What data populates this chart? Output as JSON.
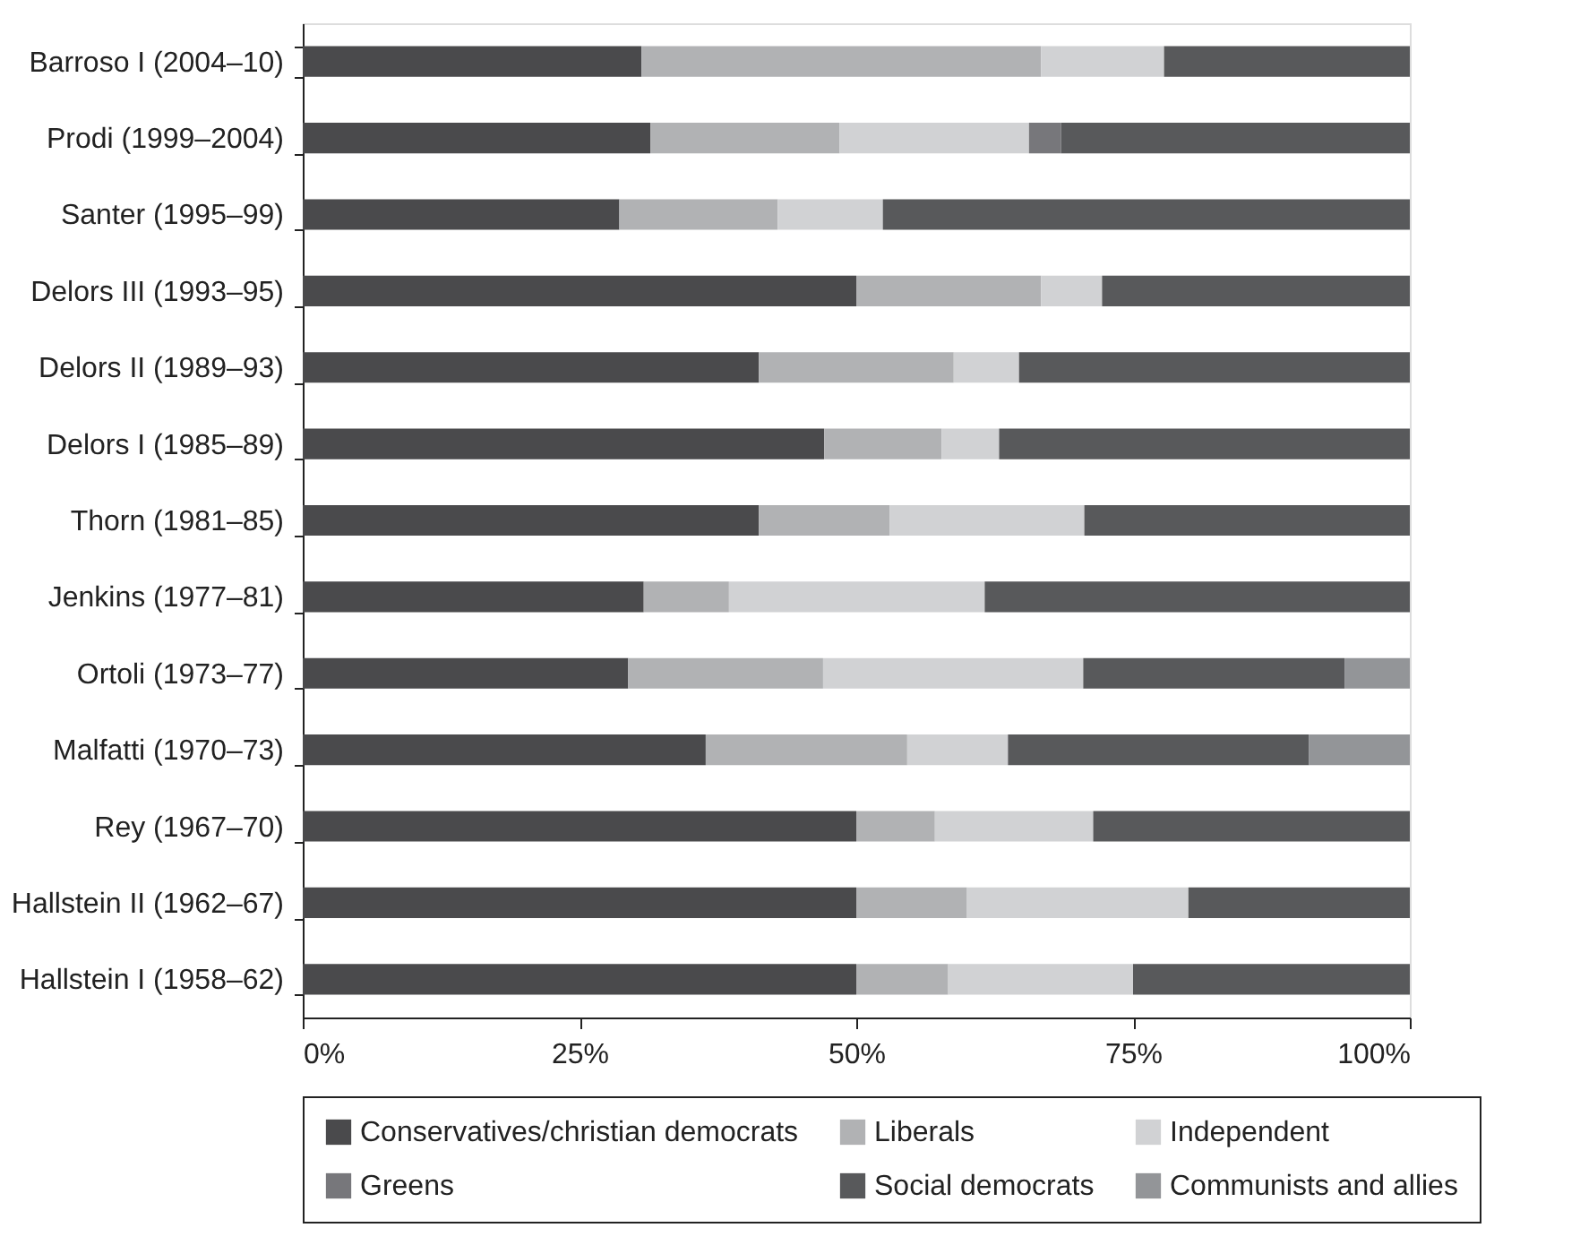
{
  "chart_data": {
    "type": "bar",
    "orientation": "horizontal",
    "stacked": true,
    "categories": [
      "Barroso I (2004–10)",
      "Prodi (1999–2004)",
      "Santer (1995–99)",
      "Delors III (1993–95)",
      "Delors II (1989–93)",
      "Delors I (1985–89)",
      "Thorn (1981–85)",
      "Jenkins (1977–81)",
      "Ortoli (1973–77)",
      "Malfatti (1970–73)",
      "Rey (1967–70)",
      "Hallstein II (1962–67)",
      "Hallstein I (1958–62)"
    ],
    "series": [
      {
        "name": "Conservatives/christian democrats",
        "color": "#4a4a4c",
        "values": [
          30.6,
          31.4,
          28.6,
          50,
          41.2,
          47.1,
          41.2,
          30.8,
          29.4,
          36.4,
          50,
          50,
          50
        ]
      },
      {
        "name": "Liberals",
        "color": "#b1b2b4",
        "values": [
          36.1,
          17.1,
          14.3,
          16.7,
          17.6,
          10.6,
          11.8,
          7.7,
          17.6,
          18.2,
          7.1,
          10,
          8.3
        ]
      },
      {
        "name": "Independent",
        "color": "#d1d2d4",
        "values": [
          11.1,
          17.1,
          9.5,
          5.5,
          5.9,
          5.2,
          17.6,
          23.1,
          23.5,
          9.1,
          14.3,
          20,
          16.7
        ]
      },
      {
        "name": "Greens",
        "color": "#77777b",
        "values": [
          null,
          2.9,
          null,
          null,
          null,
          null,
          null,
          null,
          null,
          null,
          null,
          null,
          null
        ]
      },
      {
        "name": "Social democrats",
        "color": "#58595b",
        "values": [
          22.2,
          31.5,
          47.6,
          27.8,
          35.3,
          37.1,
          29.4,
          38.4,
          23.6,
          27.2,
          28.6,
          20,
          25
        ]
      },
      {
        "name": "Communists and allies",
        "color": "#939598",
        "values": [
          null,
          null,
          null,
          null,
          null,
          null,
          null,
          null,
          5.9,
          9.1,
          null,
          null,
          null
        ]
      }
    ],
    "xlim": [
      0,
      100
    ],
    "xticks": [
      {
        "value": 0,
        "label": "0%"
      },
      {
        "value": 25,
        "label": "25%"
      },
      {
        "value": 50,
        "label": "50%"
      },
      {
        "value": 75,
        "label": "75%"
      },
      {
        "value": 100,
        "label": "100%"
      }
    ],
    "grid": false,
    "legend": "bottom"
  }
}
